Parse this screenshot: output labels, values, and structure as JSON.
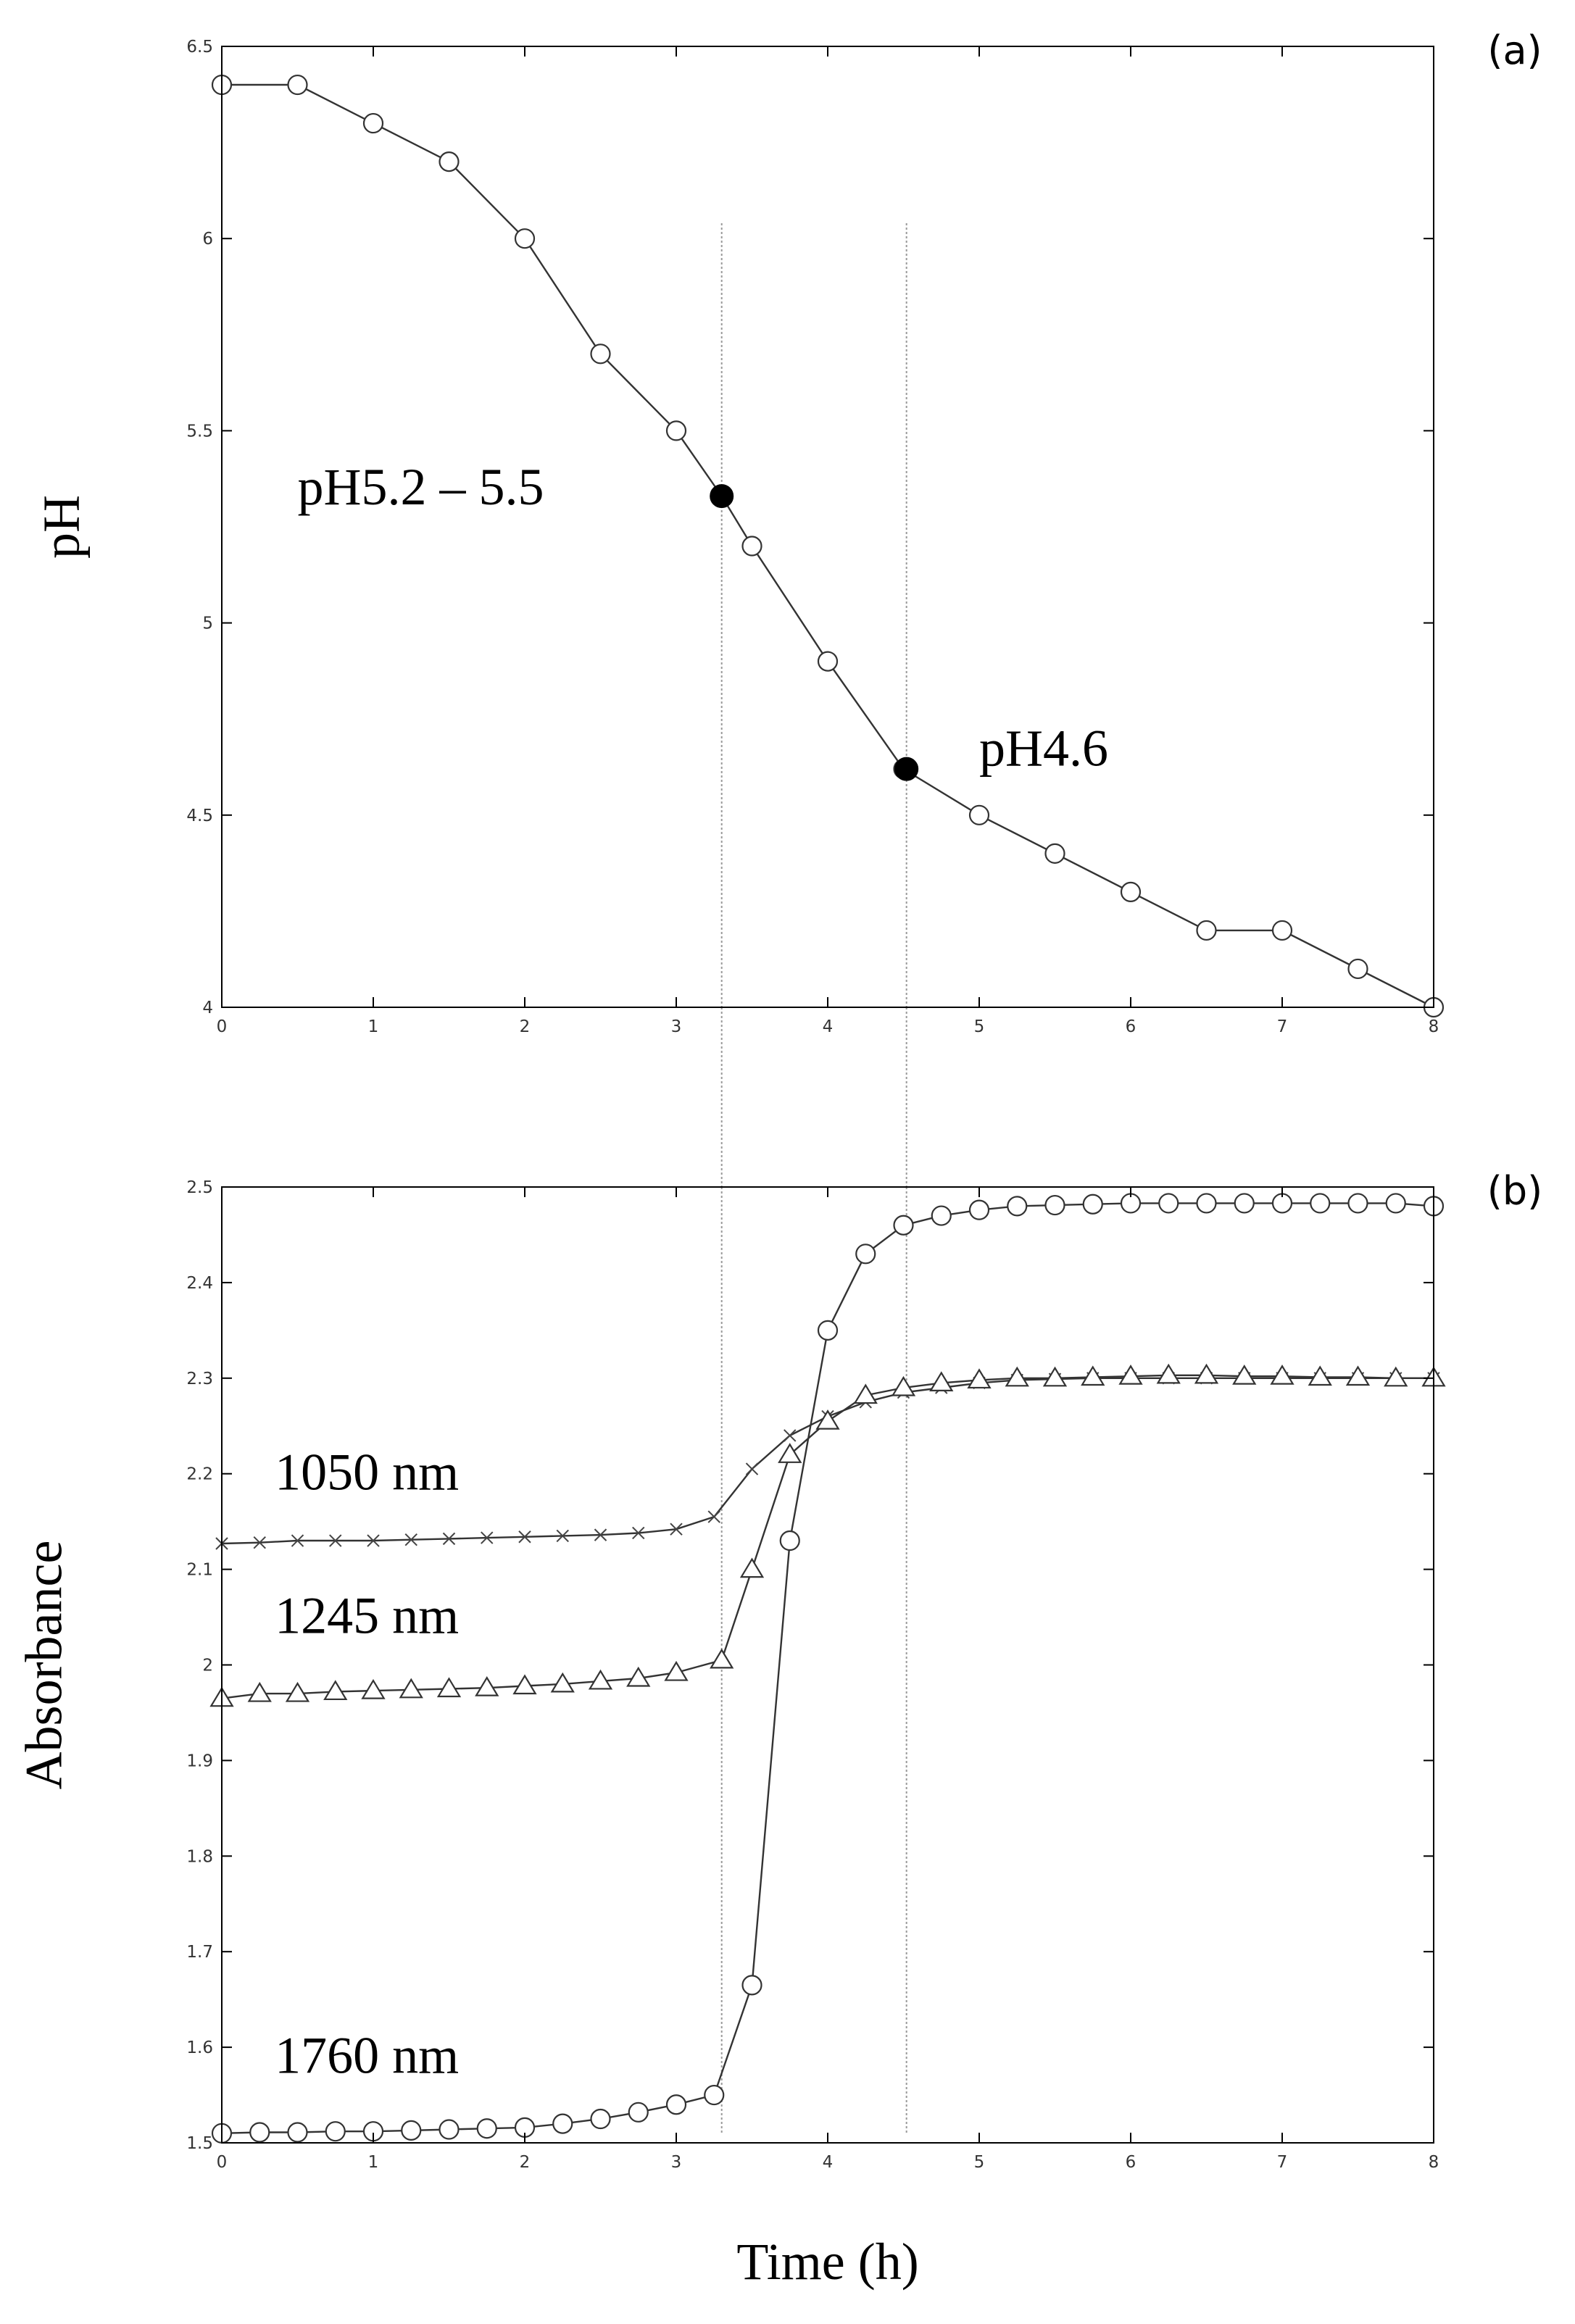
{
  "chart_data": [
    {
      "type": "line",
      "panel_label": "(a)",
      "title": "",
      "xlabel": "",
      "ylabel": "pH",
      "xlim": [
        0,
        8
      ],
      "ylim": [
        4,
        6.5
      ],
      "xticks": [
        0,
        1,
        2,
        3,
        4,
        5,
        6,
        7,
        8
      ],
      "yticks": [
        4,
        4.5,
        5,
        5.5,
        6,
        6.5
      ],
      "grid": false,
      "series": [
        {
          "name": "pH",
          "marker": "open-circle",
          "x": [
            0,
            0.5,
            1,
            1.5,
            2,
            2.5,
            3,
            3.3,
            3.5,
            4,
            4.5,
            5,
            5.5,
            6,
            6.5,
            7,
            7.5,
            8
          ],
          "y": [
            6.4,
            6.4,
            6.3,
            6.2,
            6.0,
            5.7,
            5.5,
            5.33,
            5.2,
            4.9,
            4.62,
            4.5,
            4.4,
            4.3,
            4.2,
            4.2,
            4.1,
            4.0
          ]
        }
      ],
      "highlight_points": [
        {
          "x": 3.3,
          "y": 5.33
        },
        {
          "x": 4.52,
          "y": 4.62
        }
      ],
      "annotations": [
        {
          "text": "pH5.2 – 5.5",
          "x": 0.5,
          "y": 5.35
        },
        {
          "text": "pH4.6",
          "x": 5.0,
          "y": 4.67
        }
      ],
      "reference_lines_x": [
        3.3,
        4.52
      ]
    },
    {
      "type": "line",
      "panel_label": "(b)",
      "title": "",
      "xlabel": "Time (h)",
      "ylabel": "Absorbance",
      "xlim": [
        0,
        8
      ],
      "ylim": [
        1.5,
        2.5
      ],
      "xticks": [
        0,
        1,
        2,
        3,
        4,
        5,
        6,
        7,
        8
      ],
      "yticks": [
        1.5,
        1.6,
        1.7,
        1.8,
        1.9,
        2,
        2.1,
        2.2,
        2.3,
        2.4,
        2.5
      ],
      "grid": false,
      "series": [
        {
          "name": "1050 nm",
          "marker": "x",
          "x": [
            0,
            0.25,
            0.5,
            0.75,
            1,
            1.25,
            1.5,
            1.75,
            2,
            2.25,
            2.5,
            2.75,
            3,
            3.25,
            3.5,
            3.75,
            4,
            4.25,
            4.5,
            4.75,
            5,
            5.25,
            5.5,
            5.75,
            6,
            6.25,
            6.5,
            6.75,
            7,
            7.25,
            7.5,
            7.75,
            8
          ],
          "y": [
            2.127,
            2.128,
            2.13,
            2.13,
            2.13,
            2.131,
            2.132,
            2.133,
            2.134,
            2.135,
            2.136,
            2.138,
            2.142,
            2.155,
            2.205,
            2.24,
            2.26,
            2.275,
            2.285,
            2.29,
            2.295,
            2.298,
            2.299,
            2.3,
            2.3,
            2.3,
            2.3,
            2.3,
            2.3,
            2.3,
            2.3,
            2.3,
            2.3
          ]
        },
        {
          "name": "1245 nm",
          "marker": "open-triangle",
          "x": [
            0,
            0.25,
            0.5,
            0.75,
            1,
            1.25,
            1.5,
            1.75,
            2,
            2.25,
            2.5,
            2.75,
            3,
            3.3,
            3.5,
            3.75,
            4,
            4.25,
            4.5,
            4.75,
            5,
            5.25,
            5.5,
            5.75,
            6,
            6.25,
            6.5,
            6.75,
            7,
            7.25,
            7.5,
            7.75,
            8
          ],
          "y": [
            1.965,
            1.97,
            1.97,
            1.972,
            1.973,
            1.974,
            1.975,
            1.976,
            1.978,
            1.98,
            1.983,
            1.986,
            1.992,
            2.005,
            2.1,
            2.22,
            2.255,
            2.282,
            2.29,
            2.295,
            2.298,
            2.3,
            2.3,
            2.301,
            2.302,
            2.303,
            2.303,
            2.302,
            2.302,
            2.301,
            2.301,
            2.3,
            2.3
          ]
        },
        {
          "name": "1760 nm",
          "marker": "open-circle",
          "x": [
            0,
            0.25,
            0.5,
            0.75,
            1,
            1.25,
            1.5,
            1.75,
            2,
            2.25,
            2.5,
            2.75,
            3,
            3.25,
            3.5,
            3.75,
            4,
            4.25,
            4.5,
            4.75,
            5,
            5.25,
            5.5,
            5.75,
            6,
            6.25,
            6.5,
            6.75,
            7,
            7.25,
            7.5,
            7.75,
            8
          ],
          "y": [
            1.51,
            1.511,
            1.511,
            1.512,
            1.512,
            1.513,
            1.514,
            1.515,
            1.516,
            1.52,
            1.525,
            1.532,
            1.54,
            1.55,
            1.665,
            2.13,
            2.35,
            2.43,
            2.46,
            2.47,
            2.476,
            2.48,
            2.481,
            2.482,
            2.483,
            2.483,
            2.483,
            2.483,
            2.483,
            2.483,
            2.483,
            2.483,
            2.48
          ]
        }
      ],
      "annotations": [
        {
          "text": "1050 nm",
          "x": 0.35,
          "y": 2.2
        },
        {
          "text": "1245 nm",
          "x": 0.35,
          "y": 2.05
        },
        {
          "text": "1760 nm",
          "x": 0.35,
          "y": 1.59
        }
      ],
      "reference_lines_x": [
        3.3,
        4.52
      ]
    }
  ]
}
